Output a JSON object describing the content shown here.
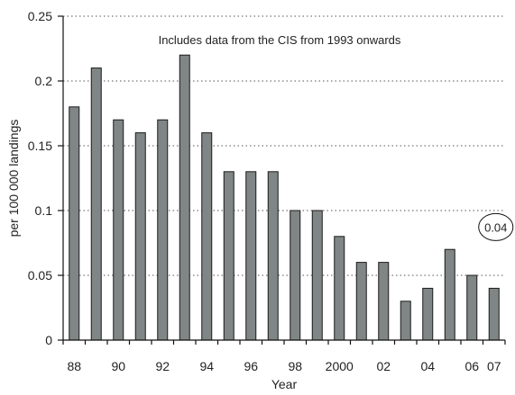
{
  "chart_data": {
    "type": "bar",
    "title": "",
    "xlabel": "Year",
    "ylabel": "per 100 000 landings",
    "x": [
      1988,
      1989,
      1990,
      1991,
      1992,
      1993,
      1994,
      1995,
      1996,
      1997,
      1998,
      1999,
      2000,
      2001,
      2002,
      2003,
      2004,
      2005,
      2006,
      2007
    ],
    "values": [
      0.18,
      0.21,
      0.17,
      0.16,
      0.17,
      0.22,
      0.16,
      0.13,
      0.13,
      0.13,
      0.1,
      0.1,
      0.08,
      0.06,
      0.06,
      0.03,
      0.04,
      0.07,
      0.05,
      0.04
    ],
    "xtick_labels": [
      {
        "x": 1988,
        "label": "88"
      },
      {
        "x": 1990,
        "label": "90"
      },
      {
        "x": 1992,
        "label": "92"
      },
      {
        "x": 1994,
        "label": "94"
      },
      {
        "x": 1996,
        "label": "96"
      },
      {
        "x": 1998,
        "label": "98"
      },
      {
        "x": 2000,
        "label": "2000"
      },
      {
        "x": 2002,
        "label": "02"
      },
      {
        "x": 2004,
        "label": "04"
      },
      {
        "x": 2006,
        "label": "06"
      },
      {
        "x": 2007,
        "label": "07"
      }
    ],
    "yticks": [
      {
        "value": 0,
        "label": "0"
      },
      {
        "value": 0.05,
        "label": "0.05"
      },
      {
        "value": 0.1,
        "label": "0.1"
      },
      {
        "value": 0.15,
        "label": "0.15"
      },
      {
        "value": 0.2,
        "label": "0.2"
      },
      {
        "value": 0.25,
        "label": "0.25"
      }
    ],
    "ylim": [
      0,
      0.25
    ],
    "grid": "horizontal dotted",
    "bar_color": "#808585",
    "bar_edge_color": "#1a1a1a",
    "annotations": [
      {
        "text": "Includes data from the CIS from 1993 onwards"
      },
      {
        "text": "0.04",
        "style": "circled"
      }
    ]
  }
}
